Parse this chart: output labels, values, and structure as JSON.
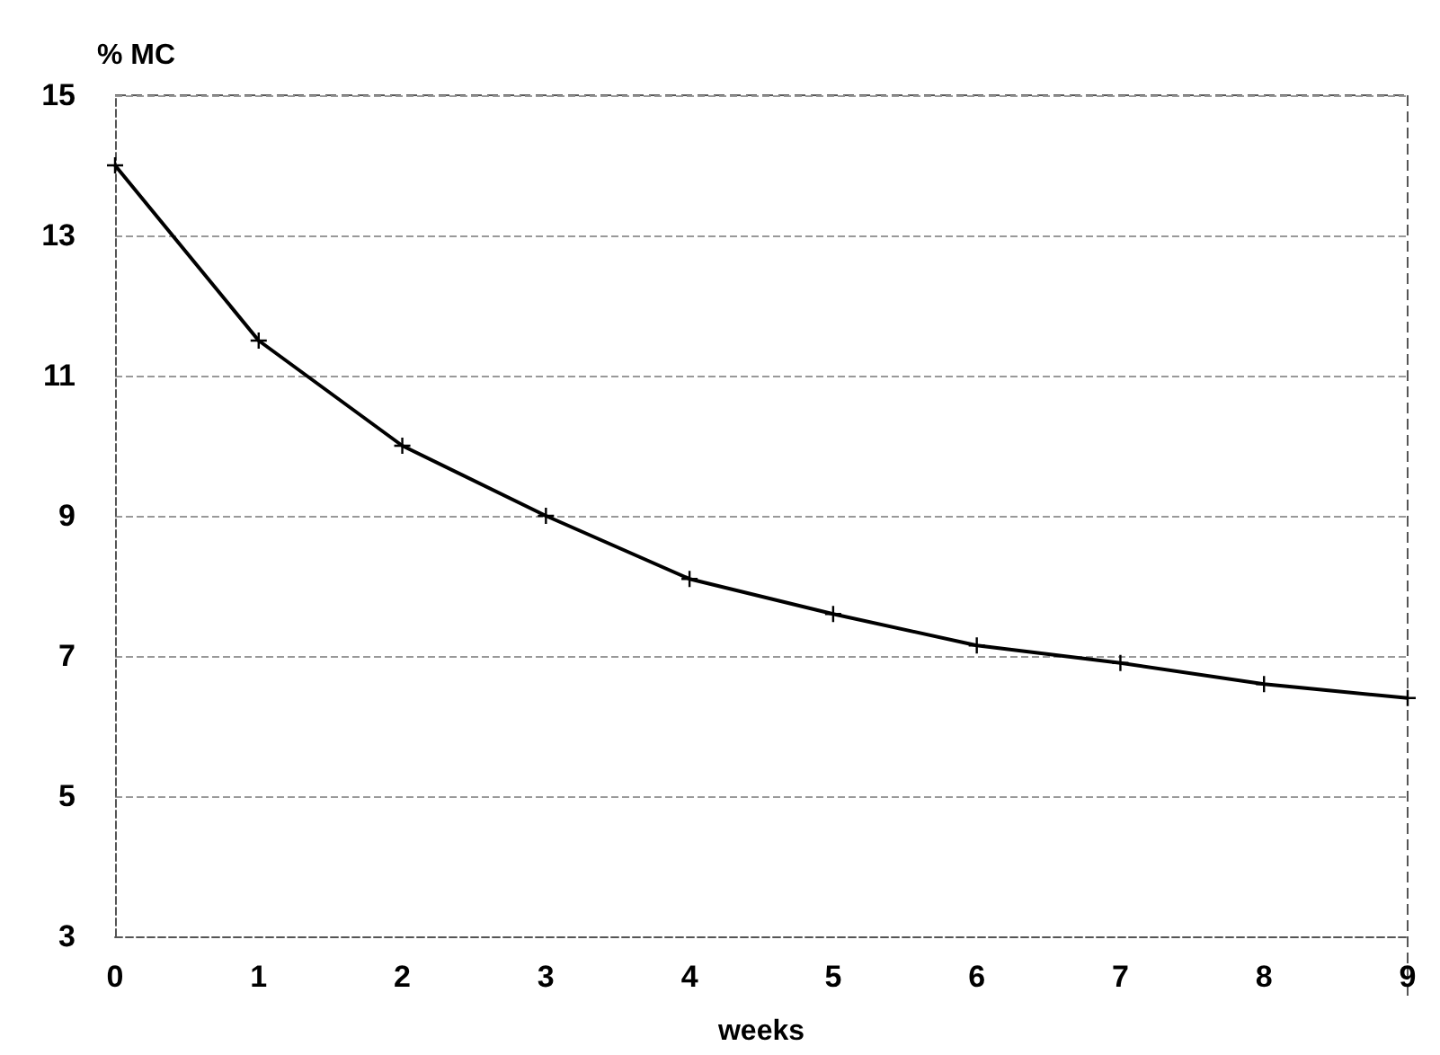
{
  "chart_data": {
    "type": "line",
    "ylabel": "% MC",
    "xlabel": "weeks",
    "x": [
      0,
      1,
      2,
      3,
      4,
      5,
      6,
      7,
      8,
      9
    ],
    "series": [
      {
        "color": "#000000",
        "values": [
          14.0,
          11.5,
          10.0,
          9.0,
          8.1,
          7.6,
          7.15,
          6.9,
          6.6,
          6.4
        ]
      }
    ],
    "xlim": [
      0,
      9
    ],
    "xticks": [
      0,
      1,
      2,
      3,
      4,
      5,
      6,
      7,
      8,
      9
    ],
    "ylim": [
      3,
      15
    ],
    "yticks": [
      3,
      5,
      7,
      9,
      11,
      13,
      15
    ],
    "grid": "y",
    "marker": "cross",
    "line_style": "solid"
  }
}
